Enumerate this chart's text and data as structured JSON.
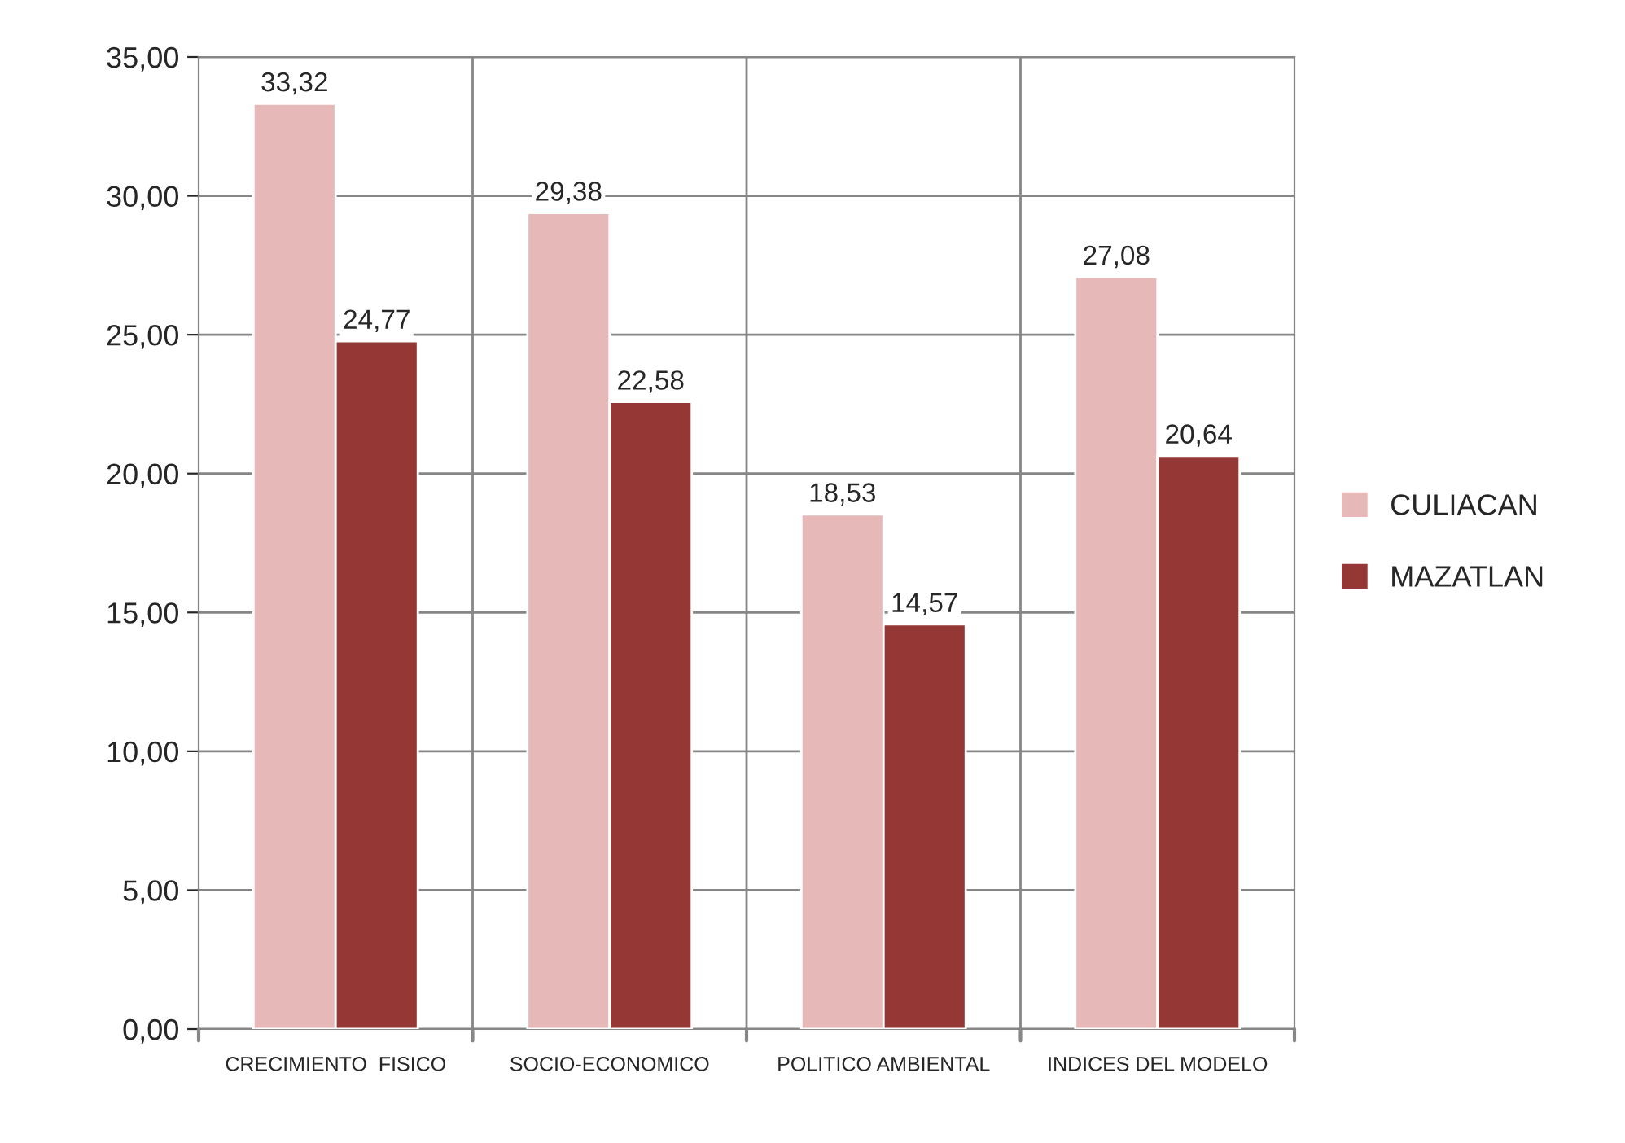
{
  "chart_data": {
    "type": "bar",
    "categories": [
      "CRECIMIENTO  FISICO",
      "SOCIO-ECONOMICO",
      "POLITICO AMBIENTAL",
      "INDICES DEL MODELO"
    ],
    "series": [
      {
        "name": "CULIACAN",
        "color": "#e6b9b8",
        "values": [
          33.32,
          29.38,
          18.53,
          27.08
        ],
        "value_labels": [
          "33,32",
          "29,38",
          "18,53",
          "27,08"
        ]
      },
      {
        "name": "MAZATLAN",
        "color": "#953735",
        "values": [
          24.77,
          22.58,
          14.57,
          20.64
        ],
        "value_labels": [
          "24,77",
          "22,58",
          "14,57",
          "20,64"
        ]
      }
    ],
    "ylim": [
      0,
      35
    ],
    "yticks": [
      {
        "value": 0,
        "label": "0,00"
      },
      {
        "value": 5,
        "label": "5,00"
      },
      {
        "value": 10,
        "label": "10,00"
      },
      {
        "value": 15,
        "label": "15,00"
      },
      {
        "value": 20,
        "label": "20,00"
      },
      {
        "value": 25,
        "label": "25,00"
      },
      {
        "value": 30,
        "label": "30,00"
      },
      {
        "value": 35,
        "label": "35,00"
      }
    ],
    "grid": true,
    "legend": "right"
  }
}
